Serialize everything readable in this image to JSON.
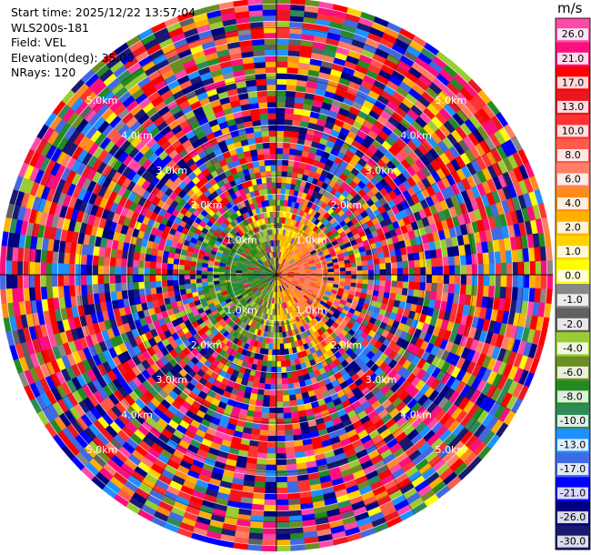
{
  "header": {
    "start_time": "Start time: 2025/12/22 13:57:04",
    "instrument": "WLS200s-181",
    "field": "Field: VEL",
    "elevation": "Elevation(deg): 35.00",
    "nrays": "NRays: 120"
  },
  "colorbar": {
    "unit": "m/s",
    "ticks": [
      "26.0",
      "21.0",
      "17.0",
      "13.0",
      "10.0",
      "8.0",
      "6.0",
      "4.0",
      "2.0",
      "1.0",
      "0.0",
      "-1.0",
      "-2.0",
      "-4.0",
      "-6.0",
      "-8.0",
      "-10.0",
      "-13.0",
      "-17.0",
      "-21.0",
      "-26.0",
      "-30.0"
    ],
    "colors": [
      "#ff49a8",
      "#fb0f7d",
      "#ff0000",
      "#ea1721",
      "#ff3333",
      "#ff5a4a",
      "#ff7f66",
      "#ff8c1a",
      "#ffb000",
      "#ffd200",
      "#ffff00",
      "#888888",
      "#606060",
      "#9acd32",
      "#6b8e23",
      "#228b22",
      "#2e8b57",
      "#1e90ff",
      "#4169e1",
      "#0000ff",
      "#000080",
      "#191970"
    ]
  },
  "chart_data": {
    "type": "heatmap",
    "projection": "polar (PPI)",
    "field": "VEL",
    "units": "m/s",
    "n_rays": 120,
    "range_rings_km": [
      1.0,
      2.0,
      3.0,
      4.0,
      5.0
    ],
    "range_ring_labels": [
      "1.0km",
      "2.0km",
      "3.0km",
      "4.0km",
      "5.0km"
    ],
    "max_range_km": 5.6,
    "color_levels": [
      -30.0,
      -26.0,
      -21.0,
      -17.0,
      -13.0,
      -10.0,
      -8.0,
      -6.0,
      -4.0,
      -2.0,
      -1.0,
      0.0,
      1.0,
      2.0,
      4.0,
      6.0,
      8.0,
      10.0,
      13.0,
      17.0,
      21.0,
      26.0
    ],
    "pattern": "near-range dipole: positive (orange/red) velocities east, negative (blue) velocities west; noise-dominated random values beyond about 2 km"
  }
}
